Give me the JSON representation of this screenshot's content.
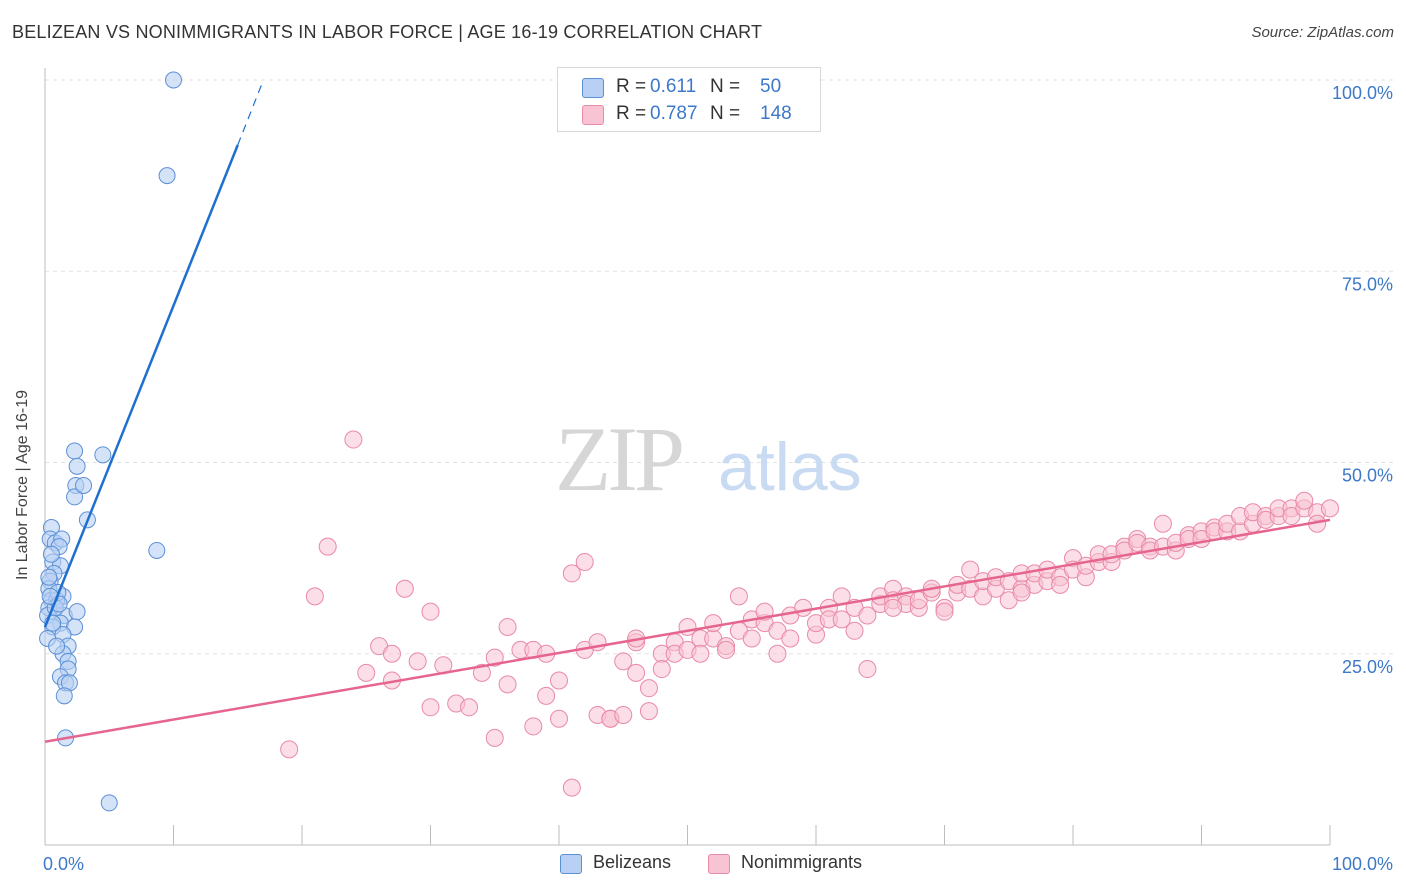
{
  "title": "BELIZEAN VS NONIMMIGRANTS IN LABOR FORCE | AGE 16-19 CORRELATION CHART",
  "source": "Source: ZipAtlas.com",
  "watermark": {
    "zip": "ZIP",
    "atlas": "atlas"
  },
  "colors": {
    "blue_fill": "#b8d0f3",
    "blue_stroke": "#5b8fd6",
    "blue_line": "#1f6fce",
    "pink_fill": "#f8c3d3",
    "pink_stroke": "#e98aa8",
    "pink_line": "#e6658e",
    "tick_text": "#3d78c9",
    "grid": "#e2e2e2"
  },
  "legend": {
    "rows": [
      {
        "r_label": "R =",
        "r_value": "0.611",
        "n_label": "N =",
        "n_value": "50"
      },
      {
        "r_label": "R =",
        "r_value": "0.787",
        "n_label": "N =",
        "n_value": "148"
      }
    ]
  },
  "bottom_legend": [
    "Belizeans",
    "Nonimmigrants"
  ],
  "chart_data": {
    "type": "scatter",
    "title": "BELIZEAN VS NONIMMIGRANTS IN LABOR FORCE | AGE 16-19 CORRELATION CHART",
    "xlabel": "",
    "ylabel": "In Labor Force | Age 16-19",
    "x_tick_labels": [
      "0.0%",
      "100.0%"
    ],
    "y_tick_labels": [
      "25.0%",
      "50.0%",
      "75.0%",
      "100.0%"
    ],
    "y_ticks": [
      25,
      50,
      75,
      100
    ],
    "xlim": [
      0,
      100
    ],
    "ylim": [
      0,
      102
    ],
    "grid": true,
    "legend_position": "top-center",
    "series": [
      {
        "name": "Belizeans",
        "r": 0.611,
        "n": 50,
        "trend": {
          "x0": 0,
          "y0": 28.5,
          "x1": 15,
          "y1": 91.5,
          "dash_to_x": 17,
          "dash_to_y": 100
        },
        "points": [
          [
            10,
            100
          ],
          [
            9.5,
            87.5
          ],
          [
            0.5,
            41.5
          ],
          [
            0.4,
            40
          ],
          [
            0.8,
            39.5
          ],
          [
            1.3,
            40
          ],
          [
            1.1,
            39
          ],
          [
            0.6,
            37
          ],
          [
            1.2,
            36.5
          ],
          [
            0.7,
            35.5
          ],
          [
            0.4,
            34.5
          ],
          [
            0.3,
            33.5
          ],
          [
            1.4,
            32.5
          ],
          [
            0.5,
            32
          ],
          [
            0.9,
            32
          ],
          [
            0.3,
            31
          ],
          [
            0.2,
            30
          ],
          [
            1.5,
            30
          ],
          [
            2.5,
            30.5
          ],
          [
            1.2,
            29
          ],
          [
            0.6,
            28.5
          ],
          [
            2.3,
            28.5
          ],
          [
            1.4,
            27.5
          ],
          [
            1.8,
            26
          ],
          [
            1.4,
            25
          ],
          [
            1.8,
            24
          ],
          [
            1.8,
            23
          ],
          [
            1.2,
            22
          ],
          [
            1.6,
            21.2
          ],
          [
            1.9,
            21.2
          ],
          [
            1.5,
            19.5
          ],
          [
            1.6,
            14
          ],
          [
            2.3,
            51.5
          ],
          [
            2.4,
            47
          ],
          [
            2.3,
            45.5
          ],
          [
            2.5,
            49.5
          ],
          [
            3.0,
            47
          ],
          [
            3.3,
            42.5
          ],
          [
            4.5,
            51
          ],
          [
            8.7,
            38.5
          ],
          [
            5.0,
            5.5
          ],
          [
            0.2,
            27
          ],
          [
            0.9,
            26
          ],
          [
            0.5,
            38
          ],
          [
            0.3,
            35
          ],
          [
            0.8,
            31
          ],
          [
            1.0,
            33
          ],
          [
            0.6,
            29
          ],
          [
            1.1,
            31.5
          ],
          [
            0.4,
            32.5
          ]
        ]
      },
      {
        "name": "Nonimmigrants",
        "r": 0.787,
        "n": 148,
        "trend": {
          "x0": 0,
          "y0": 13.5,
          "x1": 100,
          "y1": 42.5
        },
        "points": [
          [
            24,
            53
          ],
          [
            22,
            39
          ],
          [
            21,
            32.5
          ],
          [
            19,
            12.5
          ],
          [
            26,
            26
          ],
          [
            25,
            22.5
          ],
          [
            27,
            21.5
          ],
          [
            27,
            25
          ],
          [
            28,
            33.5
          ],
          [
            29,
            24
          ],
          [
            30,
            18
          ],
          [
            30,
            30.5
          ],
          [
            31,
            23.5
          ],
          [
            32,
            18.5
          ],
          [
            33,
            18
          ],
          [
            34,
            22.5
          ],
          [
            35,
            24.5
          ],
          [
            35,
            14
          ],
          [
            36,
            28.5
          ],
          [
            36,
            21
          ],
          [
            37,
            25.5
          ],
          [
            38,
            25.5
          ],
          [
            38,
            15.5
          ],
          [
            39,
            25
          ],
          [
            39,
            19.5
          ],
          [
            40,
            16.5
          ],
          [
            40,
            21.5
          ],
          [
            41,
            35.5
          ],
          [
            41,
            7.5
          ],
          [
            42,
            25.5
          ],
          [
            42,
            37
          ],
          [
            43,
            26.5
          ],
          [
            43,
            17
          ],
          [
            44,
            16.5
          ],
          [
            44,
            16.5
          ],
          [
            45,
            17
          ],
          [
            45,
            24
          ],
          [
            46,
            26.5
          ],
          [
            46,
            27
          ],
          [
            46,
            22.5
          ],
          [
            47,
            20.5
          ],
          [
            48,
            25
          ],
          [
            47,
            17.5
          ],
          [
            48,
            23
          ],
          [
            49,
            26.5
          ],
          [
            49,
            25
          ],
          [
            50,
            25.5
          ],
          [
            50,
            28.5
          ],
          [
            51,
            27
          ],
          [
            51,
            25
          ],
          [
            52,
            27
          ],
          [
            52,
            29
          ],
          [
            53,
            26
          ],
          [
            53,
            25.5
          ],
          [
            54,
            28
          ],
          [
            54,
            32.5
          ],
          [
            55,
            27
          ],
          [
            55,
            29.5
          ],
          [
            56,
            29
          ],
          [
            56,
            30.5
          ],
          [
            57,
            28
          ],
          [
            57,
            25
          ],
          [
            58,
            27
          ],
          [
            58,
            30
          ],
          [
            59,
            31
          ],
          [
            60,
            27.5
          ],
          [
            60,
            29
          ],
          [
            61,
            31
          ],
          [
            61,
            29.5
          ],
          [
            62,
            32.5
          ],
          [
            62,
            29.5
          ],
          [
            63,
            28
          ],
          [
            63,
            31
          ],
          [
            64,
            30
          ],
          [
            64,
            23
          ],
          [
            65,
            31.5
          ],
          [
            65,
            32.5
          ],
          [
            66,
            33.5
          ],
          [
            66,
            32
          ],
          [
            67,
            32.5
          ],
          [
            67,
            31.5
          ],
          [
            68,
            31
          ],
          [
            68,
            32
          ],
          [
            69,
            33
          ],
          [
            69,
            33.5
          ],
          [
            70,
            31
          ],
          [
            70,
            30.5
          ],
          [
            71,
            33
          ],
          [
            71,
            34
          ],
          [
            72,
            33.5
          ],
          [
            72,
            36
          ],
          [
            73,
            32.5
          ],
          [
            73,
            34.5
          ],
          [
            74,
            33.5
          ],
          [
            74,
            35
          ],
          [
            75,
            34.5
          ],
          [
            75,
            32
          ],
          [
            76,
            33.5
          ],
          [
            76,
            35.5
          ],
          [
            77,
            34
          ],
          [
            77,
            35.5
          ],
          [
            78,
            34.5
          ],
          [
            78,
            36
          ],
          [
            79,
            35
          ],
          [
            79,
            34
          ],
          [
            80,
            37.5
          ],
          [
            80,
            36
          ],
          [
            81,
            35
          ],
          [
            81,
            36.5
          ],
          [
            82,
            37
          ],
          [
            82,
            38
          ],
          [
            83,
            37
          ],
          [
            83,
            38
          ],
          [
            84,
            39
          ],
          [
            84,
            38.5
          ],
          [
            85,
            40
          ],
          [
            85,
            39.5
          ],
          [
            86,
            39
          ],
          [
            86,
            38.5
          ],
          [
            87,
            39
          ],
          [
            87,
            42
          ],
          [
            88,
            38.5
          ],
          [
            88,
            39.5
          ],
          [
            89,
            40.5
          ],
          [
            89,
            40
          ],
          [
            90,
            41
          ],
          [
            90,
            40
          ],
          [
            91,
            41.5
          ],
          [
            91,
            41
          ],
          [
            92,
            41
          ],
          [
            92,
            42
          ],
          [
            93,
            41
          ],
          [
            93,
            43
          ],
          [
            94,
            42
          ],
          [
            94,
            43.5
          ],
          [
            95,
            43
          ],
          [
            95,
            42.5
          ],
          [
            96,
            43
          ],
          [
            96,
            44
          ],
          [
            97,
            44
          ],
          [
            97,
            43
          ],
          [
            98,
            44
          ],
          [
            98,
            45
          ],
          [
            99,
            43.5
          ],
          [
            99,
            42
          ],
          [
            100,
            44
          ],
          [
            76,
            33
          ],
          [
            66,
            31
          ]
        ]
      }
    ]
  }
}
